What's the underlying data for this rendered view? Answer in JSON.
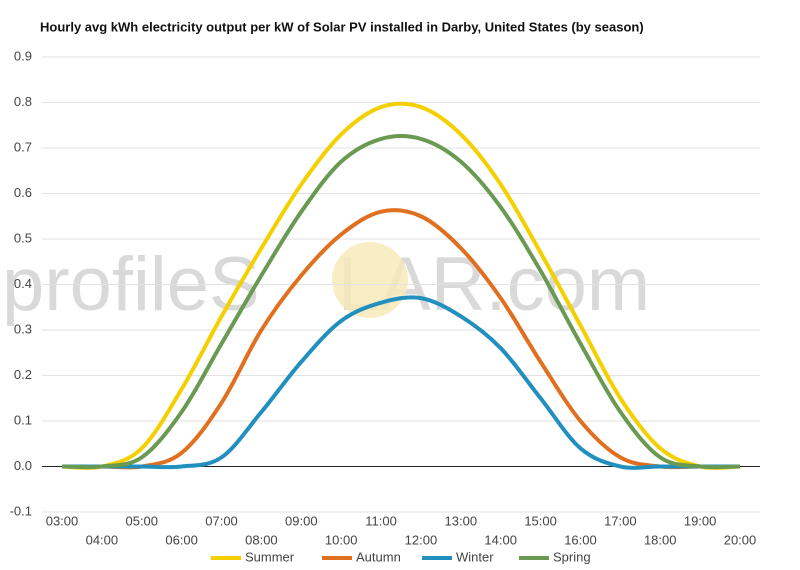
{
  "chart_data": {
    "type": "line",
    "title": "Hourly avg kWh electricity output per kW of Solar PV installed in Darby, United States (by season)",
    "watermark": [
      "profileS",
      "LAR.com"
    ],
    "categories": [
      "03:00",
      "04:00",
      "05:00",
      "06:00",
      "07:00",
      "08:00",
      "09:00",
      "10:00",
      "11:00",
      "12:00",
      "13:00",
      "14:00",
      "15:00",
      "16:00",
      "17:00",
      "18:00",
      "19:00",
      "20:00"
    ],
    "series": [
      {
        "name": "Summer",
        "color": "#f5d000",
        "values": [
          0,
          0,
          0.04,
          0.17,
          0.33,
          0.48,
          0.62,
          0.73,
          0.79,
          0.79,
          0.73,
          0.62,
          0.47,
          0.31,
          0.15,
          0.04,
          0,
          0
        ]
      },
      {
        "name": "Autumn",
        "color": "#e0701f",
        "values": [
          0,
          0,
          0,
          0.03,
          0.14,
          0.3,
          0.42,
          0.51,
          0.56,
          0.55,
          0.48,
          0.37,
          0.23,
          0.1,
          0.02,
          0,
          0,
          0
        ]
      },
      {
        "name": "Winter",
        "color": "#2190bf",
        "values": [
          0,
          0,
          0,
          0,
          0.02,
          0.12,
          0.23,
          0.32,
          0.36,
          0.37,
          0.33,
          0.26,
          0.15,
          0.04,
          0,
          0,
          0,
          0
        ]
      },
      {
        "name": "Spring",
        "color": "#6a9a52",
        "values": [
          0,
          0,
          0.02,
          0.12,
          0.27,
          0.42,
          0.56,
          0.67,
          0.72,
          0.72,
          0.67,
          0.57,
          0.43,
          0.27,
          0.12,
          0.02,
          0,
          0
        ]
      }
    ],
    "ylim": [
      -0.1,
      0.9
    ],
    "yticks": [
      -0.1,
      {
        "value": 0,
        "label": "0.0"
      },
      0.1,
      0.2,
      0.3,
      0.4,
      0.5,
      0.6,
      0.7,
      0.8,
      0.9
    ],
    "grid": true
  }
}
